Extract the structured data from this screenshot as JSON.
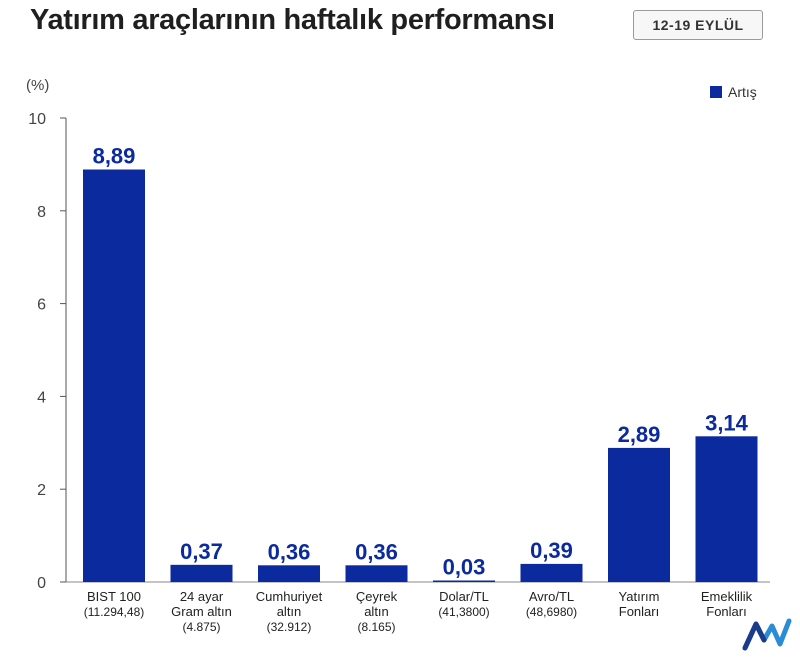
{
  "title": "Yatırım araçlarının haftalık performansı",
  "date_range": "12-19 EYLÜL",
  "chart_data": {
    "type": "bar",
    "unit_label": "(%)",
    "title": "Yatırım araçlarının haftalık performansı",
    "xlabel": "",
    "ylabel": "(%)",
    "ylim": [
      0,
      10
    ],
    "yticks": [
      0,
      2,
      4,
      6,
      8,
      10
    ],
    "grid": false,
    "legend_position": "top-right",
    "series": [
      {
        "name": "Artış",
        "color": "#0b2a9e",
        "categories": [
          {
            "label": [
              "BIST 100"
            ],
            "sub": "(11.294,48)"
          },
          {
            "label": [
              "24 ayar",
              "Gram altın"
            ],
            "sub": "(4.875)"
          },
          {
            "label": [
              "Cumhuriyet",
              "altın"
            ],
            "sub": "(32.912)"
          },
          {
            "label": [
              "Çeyrek",
              "altın"
            ],
            "sub": "(8.165)"
          },
          {
            "label": [
              "Dolar/TL"
            ],
            "sub": "(41,3800)"
          },
          {
            "label": [
              "Avro/TL"
            ],
            "sub": "(48,6980)"
          },
          {
            "label": [
              "Yatırım",
              "Fonları"
            ],
            "sub": ""
          },
          {
            "label": [
              "Emeklilik",
              "Fonları"
            ],
            "sub": ""
          }
        ],
        "values": [
          8.89,
          0.37,
          0.36,
          0.36,
          0.03,
          0.39,
          2.89,
          3.14
        ],
        "value_labels": [
          "8,89",
          "0,37",
          "0,36",
          "0,36",
          "0,03",
          "0,39",
          "2,89",
          "3,14"
        ]
      }
    ]
  },
  "logo_icon": "m-trend-logo-icon"
}
